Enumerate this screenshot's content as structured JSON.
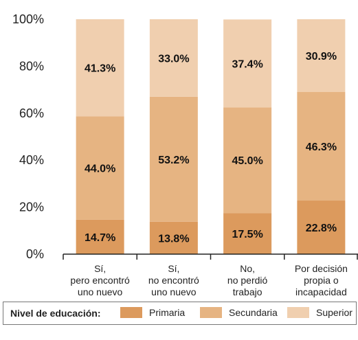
{
  "chart_data": {
    "type": "bar",
    "stacked": true,
    "categories": [
      [
        "Sí,",
        "pero encontró",
        "uno nuevo"
      ],
      [
        "Sí,",
        "no encontró",
        "uno nuevo"
      ],
      [
        "No,",
        "no perdió",
        "trabajo"
      ],
      [
        "Por decisión",
        "propia o",
        "incapacidad"
      ]
    ],
    "series": [
      {
        "name": "Primaria",
        "values": [
          14.7,
          13.8,
          17.5,
          22.8
        ],
        "labels": [
          "14.7%",
          "13.8%",
          "17.5%",
          "22.8%"
        ],
        "color": "#dc9a5d"
      },
      {
        "name": "Secundaria",
        "values": [
          44.0,
          53.2,
          45.0,
          46.3
        ],
        "labels": [
          "44.0%",
          "53.2%",
          "45.0%",
          "46.3%"
        ],
        "color": "#e6b482"
      },
      {
        "name": "Superior",
        "values": [
          41.3,
          33.0,
          37.4,
          30.9
        ],
        "labels": [
          "41.3%",
          "33.0%",
          "37.4%",
          "30.9%"
        ],
        "color": "#f0cfaf"
      }
    ],
    "yticks": [
      "0%",
      "20%",
      "40%",
      "60%",
      "80%",
      "100%"
    ],
    "ylim": [
      0,
      100
    ],
    "legend_title": "Nivel de educación:",
    "legend_position": "bottom",
    "grid": false
  }
}
